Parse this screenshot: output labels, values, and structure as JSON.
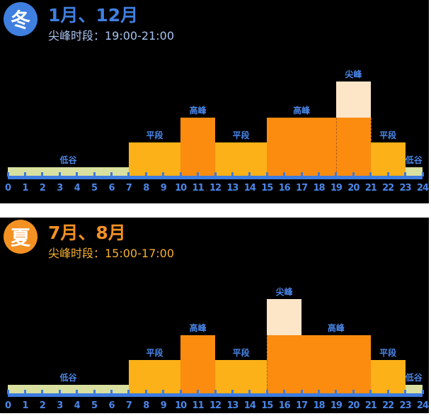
{
  "colors": {
    "low": "#d9e0a0",
    "flat": "#fbb117",
    "high": "#fb8c10",
    "peak": "#fde5c8",
    "axis": "#3d7be0",
    "label": "#4a86e8"
  },
  "chart_data": [
    {
      "type": "bar",
      "season_badge": "冬",
      "title": "1月、12月",
      "subtitle": "尖峰时段：19:00-21:00",
      "accent": "#3f7fe0",
      "subtitle_color": "#a9c3ef",
      "xlim": [
        0,
        24
      ],
      "ticks": [
        "0",
        "1",
        "2",
        "3",
        "4",
        "5",
        "6",
        "7",
        "8",
        "9",
        "10",
        "11",
        "12",
        "13",
        "14",
        "15",
        "16",
        "17",
        "18",
        "19",
        "20",
        "21",
        "22",
        "23",
        "24"
      ],
      "levels": {
        "低谷": 1,
        "平段": 2,
        "高峰": 3,
        "尖峰": 4
      },
      "segments": [
        {
          "start": 0,
          "end": 7,
          "label": "低谷"
        },
        {
          "start": 7,
          "end": 10,
          "label": "平段"
        },
        {
          "start": 10,
          "end": 12,
          "label": "高峰"
        },
        {
          "start": 12,
          "end": 15,
          "label": "平段"
        },
        {
          "start": 15,
          "end": 19,
          "label": "高峰"
        },
        {
          "start": 19,
          "end": 21,
          "label": "尖峰"
        },
        {
          "start": 21,
          "end": 23,
          "label": "平段"
        },
        {
          "start": 23,
          "end": 24,
          "label": "低谷"
        }
      ]
    },
    {
      "type": "bar",
      "season_badge": "夏",
      "title": "7月、8月",
      "subtitle": "尖峰时段：15:00-17:00",
      "accent": "#f39122",
      "subtitle_color": "#f5b030",
      "xlim": [
        0,
        24
      ],
      "ticks": [
        "0",
        "1",
        "2",
        "3",
        "4",
        "5",
        "6",
        "7",
        "8",
        "9",
        "10",
        "11",
        "12",
        "13",
        "14",
        "15",
        "16",
        "17",
        "18",
        "19",
        "20",
        "21",
        "22",
        "23",
        "24"
      ],
      "levels": {
        "低谷": 1,
        "平段": 2,
        "高峰": 3,
        "尖峰": 4
      },
      "segments": [
        {
          "start": 0,
          "end": 7,
          "label": "低谷"
        },
        {
          "start": 7,
          "end": 10,
          "label": "平段"
        },
        {
          "start": 10,
          "end": 12,
          "label": "高峰"
        },
        {
          "start": 12,
          "end": 15,
          "label": "平段"
        },
        {
          "start": 15,
          "end": 17,
          "label": "尖峰"
        },
        {
          "start": 17,
          "end": 21,
          "label": "高峰"
        },
        {
          "start": 21,
          "end": 23,
          "label": "平段"
        },
        {
          "start": 23,
          "end": 24,
          "label": "低谷"
        }
      ]
    }
  ]
}
